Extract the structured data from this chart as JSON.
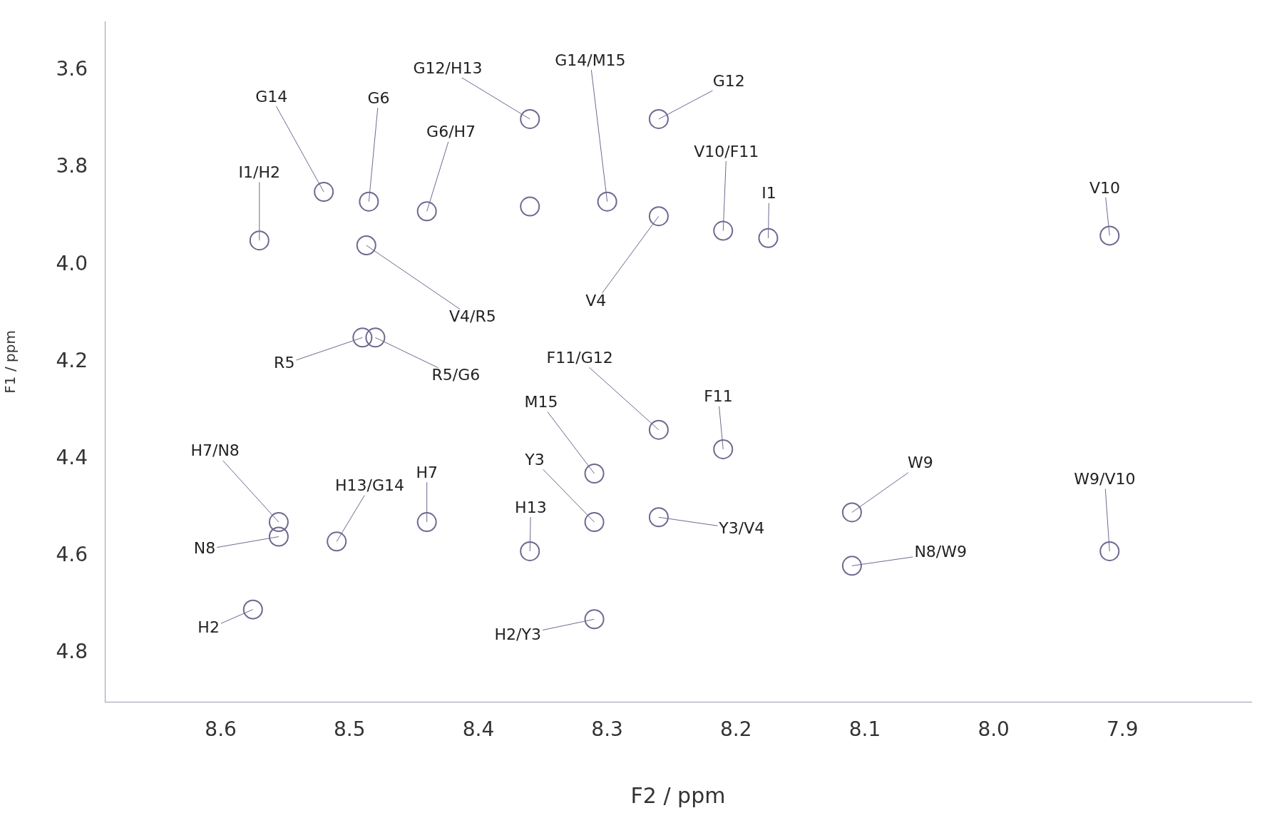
{
  "chart_data": {
    "type": "scatter",
    "xlabel": "F2 / ppm",
    "ylabel": "F1 / ppm",
    "xlim": [
      8.69,
      7.8
    ],
    "ylim": [
      4.9,
      3.5
    ],
    "xticks": [
      8.6,
      8.5,
      8.4,
      8.3,
      8.2,
      8.1,
      {
        "value": 8.0,
        "label": "8.0"
      },
      7.9
    ],
    "yticks": [
      3.6,
      3.8,
      {
        "value": 4.0,
        "label": "4.0"
      },
      4.2,
      4.4,
      4.6,
      4.8
    ],
    "grid": false,
    "legend": false,
    "marker": "circle",
    "series": [
      {
        "color": "#6d6a8f",
        "x": [
          8.57,
          8.52,
          8.485,
          8.44,
          8.487,
          8.49,
          8.48,
          8.36,
          8.36,
          8.3,
          8.26,
          8.26,
          8.21,
          8.175,
          7.91,
          8.26,
          8.21,
          8.26,
          8.31,
          8.31,
          8.36,
          8.31,
          8.44,
          8.51,
          8.555,
          8.555,
          8.575,
          8.11,
          8.11,
          7.91
        ],
        "values": [
          3.95,
          3.85,
          3.87,
          3.89,
          3.96,
          4.15,
          4.15,
          3.7,
          3.88,
          3.87,
          3.7,
          3.9,
          3.93,
          3.945,
          3.94,
          4.34,
          4.38,
          4.52,
          4.43,
          4.53,
          4.59,
          4.73,
          4.53,
          4.57,
          4.53,
          4.56,
          4.71,
          4.51,
          4.62,
          4.59
        ]
      }
    ],
    "annotations": [
      {
        "text": "I1/H2",
        "x": 8.57,
        "y": 3.95
      },
      {
        "text": "G14",
        "x": 8.52,
        "y": 3.85
      },
      {
        "text": "G6",
        "x": 8.485,
        "y": 3.87
      },
      {
        "text": "G6/H7",
        "x": 8.44,
        "y": 3.89
      },
      {
        "text": "V4/R5",
        "x": 8.487,
        "y": 3.96
      },
      {
        "text": "R5",
        "x": 8.49,
        "y": 4.15
      },
      {
        "text": "R5/G6",
        "x": 8.48,
        "y": 4.15
      },
      {
        "text": "G12/H13",
        "x": 8.36,
        "y": 3.7
      },
      {
        "text": "G14/M15",
        "x": 8.3,
        "y": 3.87
      },
      {
        "text": "G12",
        "x": 8.26,
        "y": 3.7
      },
      {
        "text": "V4",
        "x": 8.26,
        "y": 3.9
      },
      {
        "text": "V10/F11",
        "x": 8.21,
        "y": 3.93
      },
      {
        "text": "I1",
        "x": 8.175,
        "y": 3.945
      },
      {
        "text": "V10",
        "x": 7.91,
        "y": 3.94
      },
      {
        "text": "F11/G12",
        "x": 8.26,
        "y": 4.34
      },
      {
        "text": "F11",
        "x": 8.21,
        "y": 4.38
      },
      {
        "text": "Y3/V4",
        "x": 8.26,
        "y": 4.52
      },
      {
        "text": "M15",
        "x": 8.31,
        "y": 4.43
      },
      {
        "text": "Y3",
        "x": 8.31,
        "y": 4.53
      },
      {
        "text": "H13",
        "x": 8.36,
        "y": 4.59
      },
      {
        "text": "H2/Y3",
        "x": 8.31,
        "y": 4.73
      },
      {
        "text": "H7",
        "x": 8.44,
        "y": 4.53
      },
      {
        "text": "H13/G14",
        "x": 8.51,
        "y": 4.57
      },
      {
        "text": "H7/N8",
        "x": 8.555,
        "y": 4.53
      },
      {
        "text": "N8",
        "x": 8.555,
        "y": 4.56
      },
      {
        "text": "H2",
        "x": 8.575,
        "y": 4.71
      },
      {
        "text": "W9",
        "x": 8.11,
        "y": 4.51
      },
      {
        "text": "N8/W9",
        "x": 8.11,
        "y": 4.62
      },
      {
        "text": "W9/V10",
        "x": 7.91,
        "y": 4.59
      }
    ]
  }
}
